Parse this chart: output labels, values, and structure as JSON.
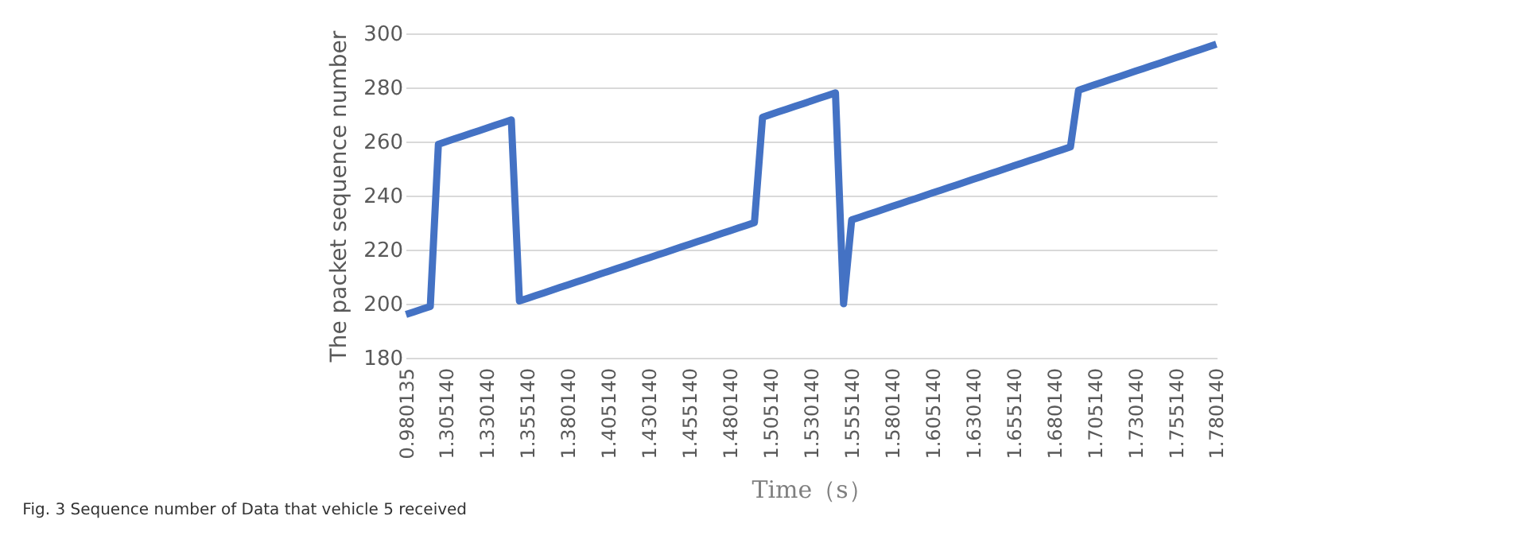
{
  "chart_data": {
    "type": "line",
    "xlabel": "Time（s）",
    "ylabel": "The packet sequence number",
    "annotations": [
      "Fig. 3 Sequence number of Data that vehicle 5 received"
    ],
    "categories": [
      "0.980135",
      null,
      null,
      null,
      null,
      "1.305140",
      null,
      null,
      null,
      null,
      "1.330140",
      null,
      null,
      null,
      null,
      "1.355140",
      null,
      null,
      null,
      null,
      "1.380140",
      null,
      null,
      null,
      null,
      "1.405140",
      null,
      null,
      null,
      null,
      "1.430140",
      null,
      null,
      null,
      null,
      "1.455140",
      null,
      null,
      null,
      null,
      "1.480140",
      null,
      null,
      null,
      null,
      "1.505140",
      null,
      null,
      null,
      null,
      "1.530140",
      null,
      null,
      null,
      null,
      "1.555140",
      null,
      null,
      null,
      null,
      "1.580140",
      null,
      null,
      null,
      null,
      "1.605140",
      null,
      null,
      null,
      null,
      "1.630140",
      null,
      null,
      null,
      null,
      "1.655140",
      null,
      null,
      null,
      null,
      "1.680140",
      null,
      null,
      null,
      null,
      "1.705140",
      null,
      null,
      null,
      null,
      "1.730140",
      null,
      null,
      null,
      null,
      "1.755140",
      null,
      null,
      null,
      null,
      "1.780140"
    ],
    "series": [
      {
        "color": "#4472c4",
        "values": [
          196,
          197,
          198,
          199,
          259,
          260,
          261,
          262,
          263,
          264,
          265,
          266,
          267,
          268,
          201,
          202,
          203,
          204,
          205,
          206,
          207,
          208,
          209,
          210,
          211,
          212,
          213,
          214,
          215,
          216,
          217,
          218,
          219,
          220,
          221,
          222,
          223,
          224,
          225,
          226,
          227,
          228,
          229,
          230,
          269,
          270,
          271,
          272,
          273,
          274,
          275,
          276,
          277,
          278,
          200,
          231,
          232,
          233,
          234,
          235,
          236,
          237,
          238,
          239,
          240,
          241,
          242,
          243,
          244,
          245,
          246,
          247,
          248,
          249,
          250,
          251,
          252,
          253,
          254,
          255,
          256,
          257,
          258,
          279,
          280,
          281,
          282,
          283,
          284,
          285,
          286,
          287,
          288,
          289,
          290,
          291,
          292,
          293,
          294,
          295,
          296
        ]
      }
    ],
    "ylim": [
      180,
      300
    ],
    "yticks": [
      180,
      200,
      220,
      240,
      260,
      280,
      300
    ],
    "grid": "y",
    "marker": "none",
    "line_style": "solid"
  }
}
